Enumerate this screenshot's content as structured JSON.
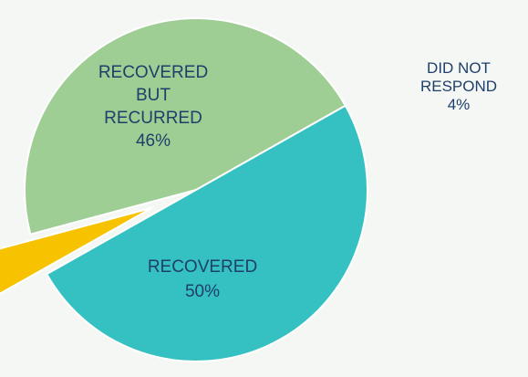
{
  "chart_data": {
    "type": "pie",
    "title": "",
    "slices": [
      {
        "label_lines": [
          "RECOVERED",
          "BUT",
          "RECURRED"
        ],
        "value": 46,
        "value_label": "46%",
        "color": "#9fce94"
      },
      {
        "label_lines": [
          "RECOVERED"
        ],
        "value": 50,
        "value_label": "50%",
        "color": "#35c0c2"
      },
      {
        "label_lines": [
          "DID NOT",
          "RESPOND"
        ],
        "value": 4,
        "value_label": "4%",
        "color": "#f7c200",
        "exploded": true
      }
    ],
    "legend": "none",
    "label_color": "#1f3f6b"
  }
}
